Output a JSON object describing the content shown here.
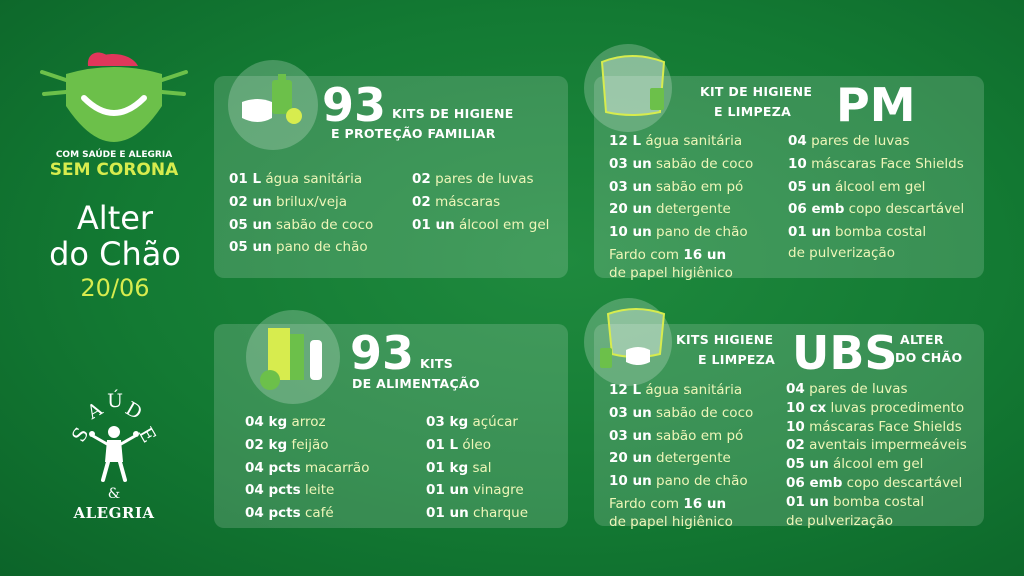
{
  "logo": {
    "tagline": "COM SAÚDE E ALEGRIA",
    "title": "SEM CORONA"
  },
  "location": {
    "line1": "Alter",
    "line2": "do Chão",
    "date": "20/06"
  },
  "sa_logo": {
    "letters": [
      "S",
      "A",
      "Ú",
      "D",
      "E"
    ],
    "amp": "&",
    "bottom": "ALEGRIA"
  },
  "colors": {
    "background": "#137a33",
    "accent_text": "#eef6b8",
    "logo_heart": "#e0375b",
    "logo_mask": "#6cc04a"
  },
  "kit_familiar": {
    "number": "93",
    "label_line1": "KITS DE HIGIENE",
    "label_line2": "E PROTEÇÃO FAMILIAR",
    "icon": "hygiene-kit-icon",
    "col1": [
      {
        "qty": "01 L",
        "item": "água sanitária"
      },
      {
        "qty": "02 un",
        "item": "brilux/veja"
      },
      {
        "qty": "05 un",
        "item": "sabão de coco"
      },
      {
        "qty": "05 un",
        "item": "pano de chão"
      }
    ],
    "col2": [
      {
        "qty": "02",
        "item": "pares de luvas"
      },
      {
        "qty": "02",
        "item": "máscaras"
      },
      {
        "qty": "01 un",
        "item": "álcool em gel"
      }
    ]
  },
  "kit_pm": {
    "label_line1": "KIT DE HIGIENE",
    "label_line2": "E LIMPEZA",
    "big": "PM",
    "icon": "face-shield-icon",
    "col1": [
      {
        "qty": "12 L",
        "item": "água sanitária"
      },
      {
        "qty": "03 un",
        "item": "sabão de coco"
      },
      {
        "qty": "03 un",
        "item": "sabão em pó"
      },
      {
        "qty": "20 un",
        "item": "detergente"
      },
      {
        "qty": "10 un",
        "item": "pano de chão"
      }
    ],
    "col1_extra": {
      "prefix": "Fardo com",
      "qty": "16 un",
      "line2": "de papel higiênico"
    },
    "col2": [
      {
        "qty": "04",
        "item": "pares de luvas"
      },
      {
        "qty": "10",
        "item": "máscaras Face Shields"
      },
      {
        "qty": "05 un",
        "item": "álcool em gel"
      },
      {
        "qty": "06 emb",
        "item": "copo descartável"
      },
      {
        "qty": "01 un",
        "item": "bomba costal"
      }
    ],
    "col2_extra": "de pulverização"
  },
  "kit_alimentacao": {
    "number": "93",
    "label_line1": "KITS",
    "label_line2": "DE ALIMENTAÇÃO",
    "icon": "groceries-icon",
    "col1": [
      {
        "qty": "04 kg",
        "item": "arroz"
      },
      {
        "qty": "02 kg",
        "item": "feijão"
      },
      {
        "qty": "04 pcts",
        "item": "macarrão"
      },
      {
        "qty": "04 pcts",
        "item": "leite"
      },
      {
        "qty": "04 pcts",
        "item": "café"
      }
    ],
    "col2": [
      {
        "qty": "03 kg",
        "item": "açúcar"
      },
      {
        "qty": "01 L",
        "item": "óleo"
      },
      {
        "qty": "01 kg",
        "item": "sal"
      },
      {
        "qty": "01 un",
        "item": "vinagre"
      },
      {
        "qty": "01 un",
        "item": "charque"
      }
    ]
  },
  "kit_ubs": {
    "label_line1": "KITS HIGIENE",
    "label_line2": "E LIMPEZA",
    "big": "UBS",
    "suffix_line1": "ALTER",
    "suffix_line2": "DO CHÃO",
    "icon": "face-shield-icon",
    "col1": [
      {
        "qty": "12 L",
        "item": "água sanitária"
      },
      {
        "qty": "03 un",
        "item": "sabão de coco"
      },
      {
        "qty": "03 un",
        "item": "sabão em pó"
      },
      {
        "qty": "20 un",
        "item": "detergente"
      },
      {
        "qty": "10 un",
        "item": "pano de chão"
      }
    ],
    "col1_extra": {
      "prefix": "Fardo com",
      "qty": "16 un",
      "line2": "de papel higiênico"
    },
    "col2": [
      {
        "qty": "04",
        "item": "pares de luvas"
      },
      {
        "qty": "10 cx",
        "item": "luvas procedimento"
      },
      {
        "qty": "10",
        "item": "máscaras Face Shields"
      },
      {
        "qty": "02",
        "item": "aventais impermeáveis"
      },
      {
        "qty": "05 un",
        "item": "álcool em gel"
      },
      {
        "qty": "06 emb",
        "item": "copo descartável"
      },
      {
        "qty": "01 un",
        "item": "bomba costal"
      }
    ],
    "col2_extra": "de pulverização"
  }
}
